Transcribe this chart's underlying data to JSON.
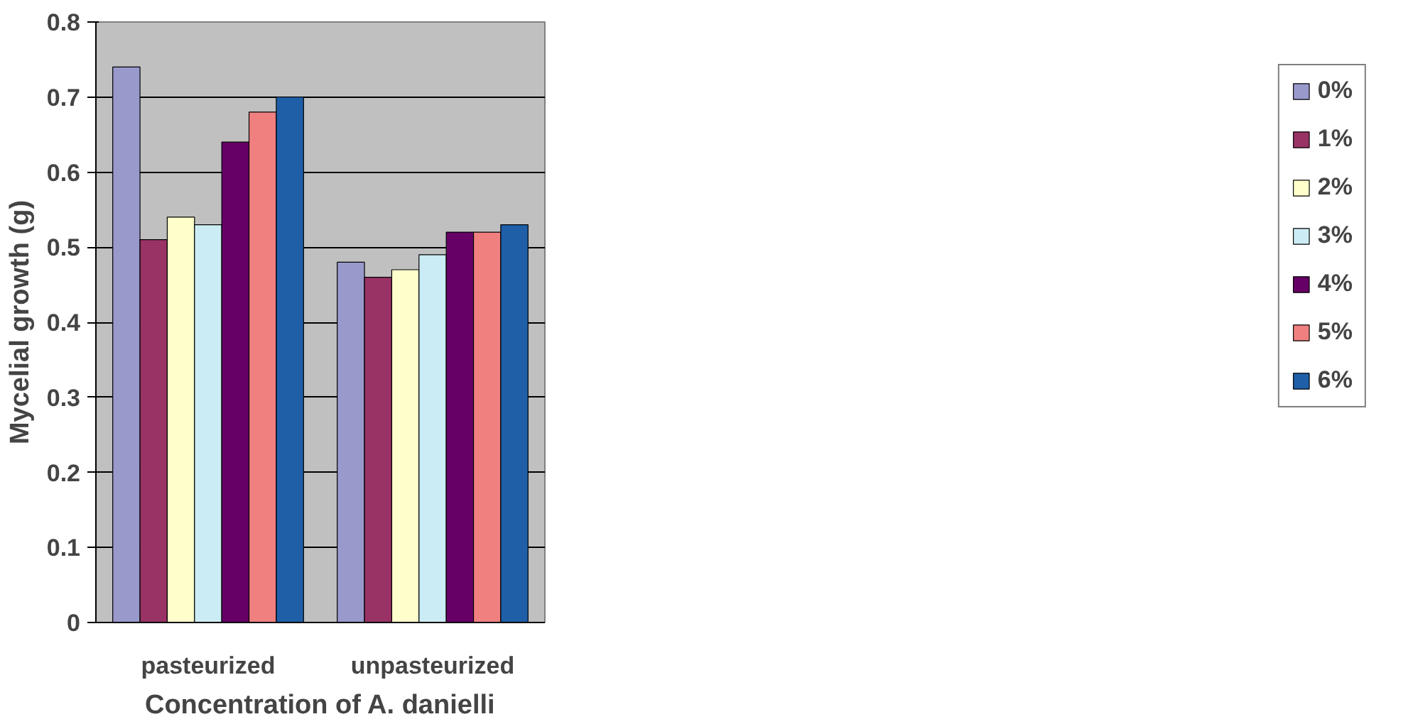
{
  "chart_data": {
    "type": "bar",
    "xlabel": "Concentration of A. danielli",
    "ylabel": "Mycelial growth (g)",
    "categories": [
      "pasteurized",
      "unpasteurized"
    ],
    "series": [
      {
        "name": "0%",
        "color": "#9999cc",
        "values": [
          0.74,
          0.48
        ]
      },
      {
        "name": "1%",
        "color": "#993366",
        "values": [
          0.51,
          0.46
        ]
      },
      {
        "name": "2%",
        "color": "#ffffcc",
        "values": [
          0.54,
          0.47
        ]
      },
      {
        "name": "3%",
        "color": "#ccecf5",
        "values": [
          0.53,
          0.49
        ]
      },
      {
        "name": "4%",
        "color": "#660066",
        "values": [
          0.64,
          0.52
        ]
      },
      {
        "name": "5%",
        "color": "#f08080",
        "values": [
          0.68,
          0.52
        ]
      },
      {
        "name": "6%",
        "color": "#1f5fa8",
        "values": [
          0.7,
          0.53
        ]
      }
    ],
    "ylim": [
      0,
      0.8
    ],
    "yticks": [
      0,
      0.1,
      0.2,
      0.3,
      0.4,
      0.5,
      0.6,
      0.7,
      0.8
    ],
    "grid": "y",
    "legend": "right"
  }
}
